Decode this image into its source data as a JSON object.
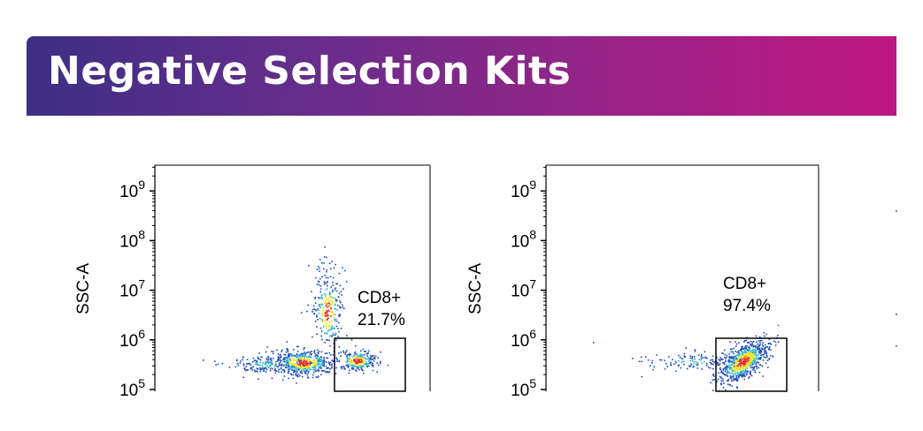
{
  "header": {
    "title": "Negative Selection Kits"
  },
  "colors": {
    "banner_start": "#3d2f86",
    "banner_end": "#be1682",
    "density_low": "#1f4bb5",
    "density_mid": "#33b9c9",
    "density_high": "#f0e11f",
    "density_peak": "#e63222"
  },
  "chart_data": [
    {
      "type": "scatter",
      "ylabel": "SSC-A",
      "xlabel": "",
      "yscale": "log",
      "ylim": [
        100000,
        2000000000
      ],
      "yticks": [
        {
          "base": "10",
          "exp": "5",
          "value": 100000
        },
        {
          "base": "10",
          "exp": "6",
          "value": 1000000
        },
        {
          "base": "10",
          "exp": "7",
          "value": 10000000
        },
        {
          "base": "10",
          "exp": "8",
          "value": 100000000
        },
        {
          "base": "10",
          "exp": "9",
          "value": 1000000000
        }
      ],
      "gate": {
        "label": "CD8+",
        "value": "21.7%",
        "percent": 21.7
      }
    },
    {
      "type": "scatter",
      "ylabel": "SSC-A",
      "xlabel": "",
      "yscale": "log",
      "ylim": [
        100000,
        2000000000
      ],
      "yticks": [
        {
          "base": "10",
          "exp": "5",
          "value": 100000
        },
        {
          "base": "10",
          "exp": "6",
          "value": 1000000
        },
        {
          "base": "10",
          "exp": "7",
          "value": 10000000
        },
        {
          "base": "10",
          "exp": "8",
          "value": 100000000
        },
        {
          "base": "10",
          "exp": "9",
          "value": 1000000000
        }
      ],
      "gate": {
        "label": "CD8+",
        "value": "97.4%",
        "percent": 97.4
      }
    }
  ]
}
